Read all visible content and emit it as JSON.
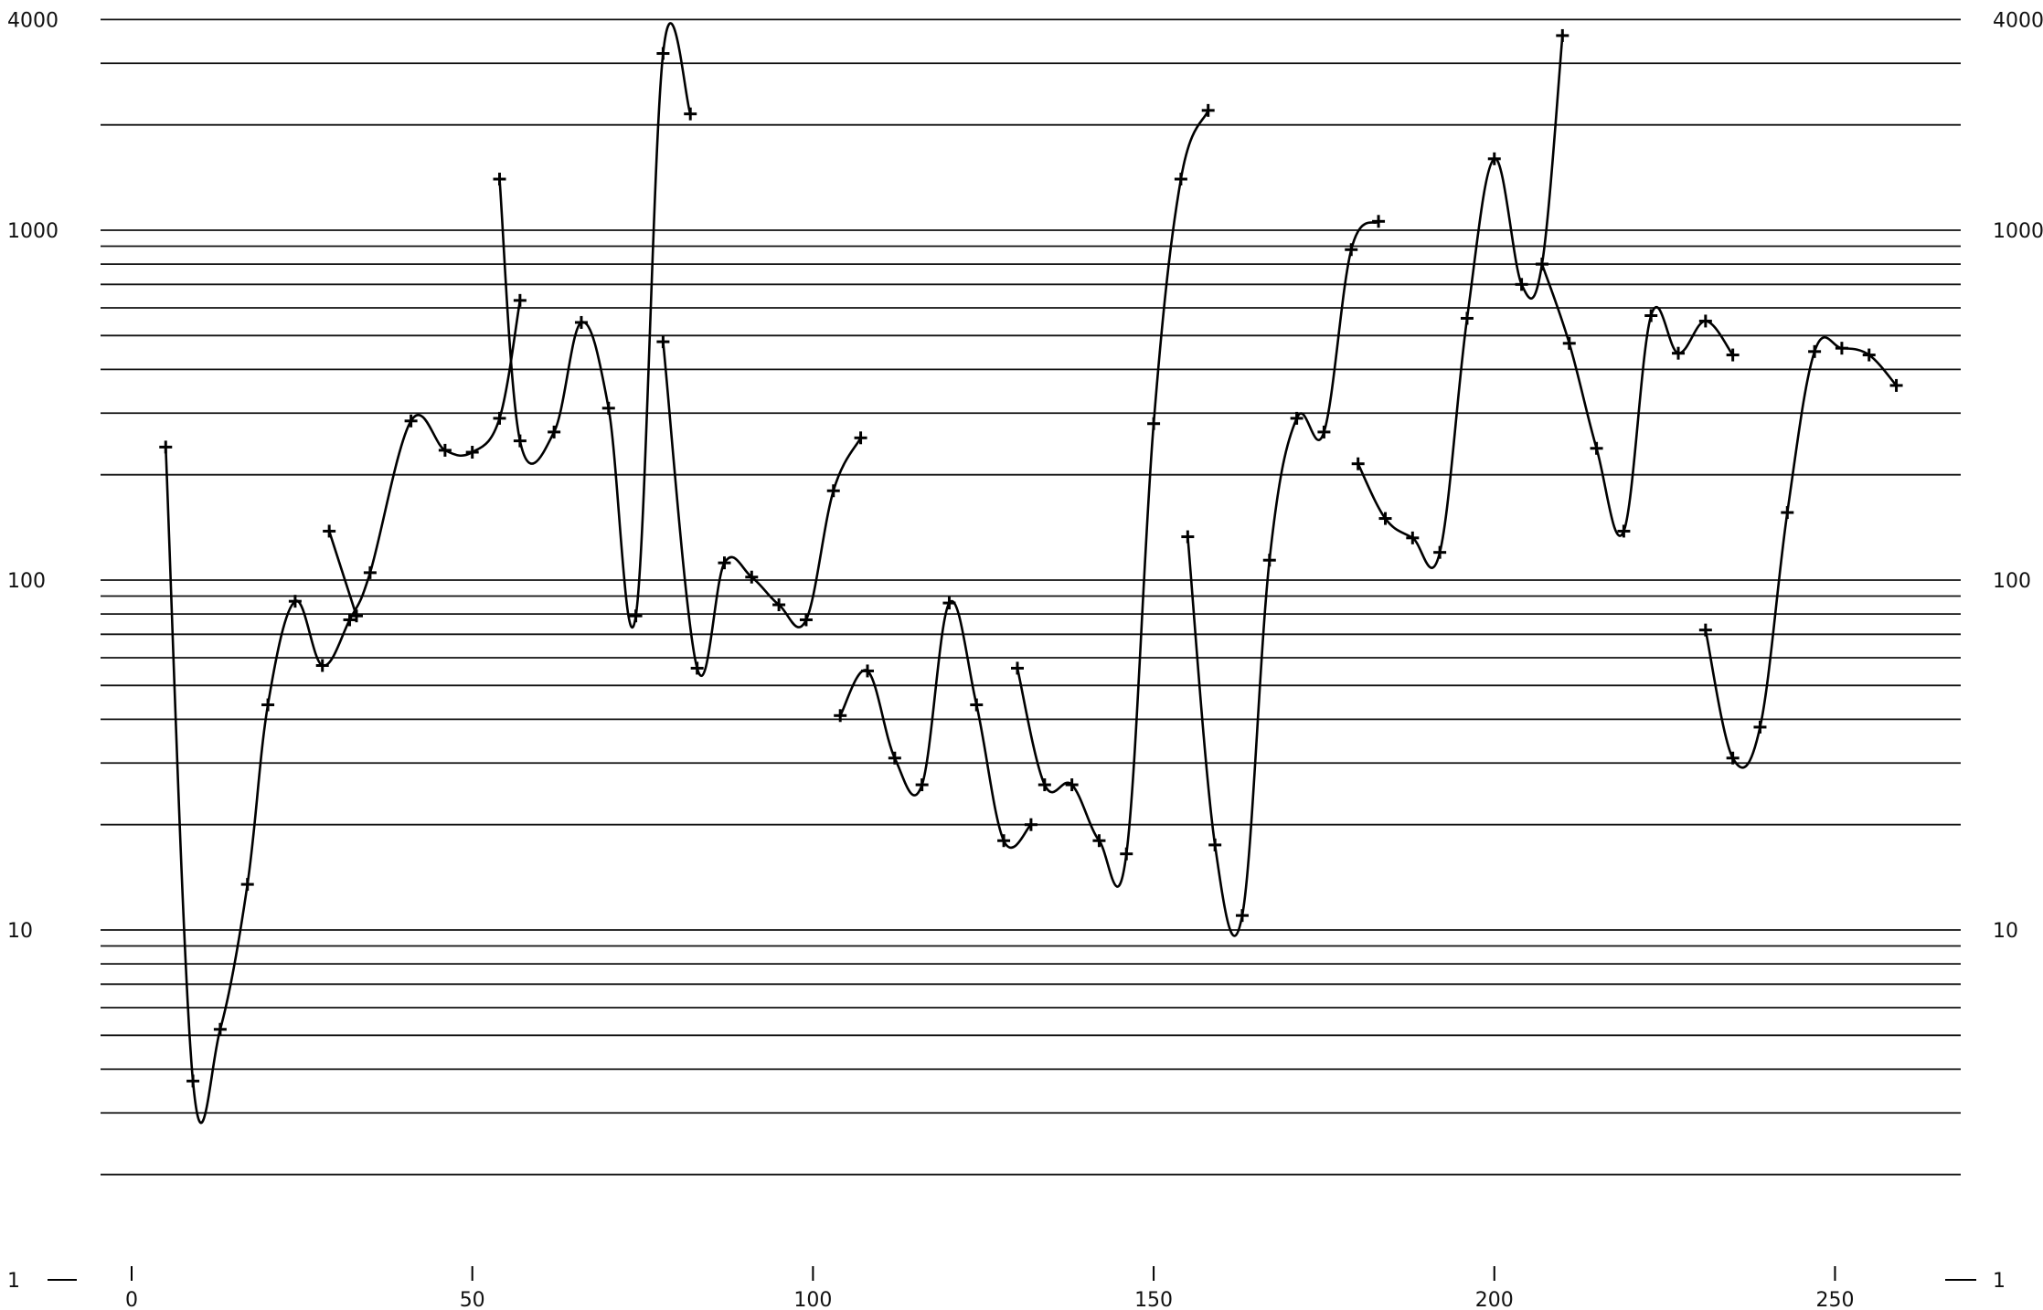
{
  "chart_data": {
    "type": "line",
    "title": "",
    "xlabel": "",
    "ylabel": "",
    "y_scale": "log",
    "ylim": [
      1,
      4000
    ],
    "xlim": [
      0,
      260
    ],
    "grid": "horizontal log gridlines at every integer multiple of each decade",
    "x_tick_labels": [
      "0",
      "50",
      "100",
      "150",
      "200",
      "250"
    ],
    "x_ticks": [
      0,
      50,
      100,
      150,
      200,
      250
    ],
    "y_tick_labels": [
      "1",
      "10",
      "100",
      "1000",
      "4000"
    ],
    "y_ticks": [
      1,
      10,
      100,
      1000,
      4000
    ],
    "y_tick_labels_right": [
      "1",
      "10",
      "100",
      "1000",
      "4000"
    ],
    "segments": [
      {
        "points": [
          [
            5,
            240
          ],
          [
            9,
            3.7
          ],
          [
            13,
            5.2
          ],
          [
            17,
            13.5
          ],
          [
            20,
            44
          ],
          [
            24,
            87
          ],
          [
            28,
            57
          ],
          [
            32,
            77
          ],
          [
            35,
            105
          ],
          [
            41,
            285
          ],
          [
            46,
            235
          ],
          [
            50,
            232
          ],
          [
            54,
            290
          ],
          [
            57,
            630
          ]
        ]
      },
      {
        "points": [
          [
            29,
            138
          ],
          [
            33,
            79
          ]
        ]
      },
      {
        "points": [
          [
            54,
            1400
          ],
          [
            57,
            250
          ],
          [
            62,
            265
          ],
          [
            66,
            545
          ],
          [
            70,
            310
          ],
          [
            74,
            79
          ],
          [
            78,
            3200
          ],
          [
            82,
            2150
          ]
        ]
      },
      {
        "points": [
          [
            78,
            480
          ],
          [
            83,
            56
          ],
          [
            87,
            112
          ],
          [
            91,
            102
          ],
          [
            95,
            85
          ],
          [
            99,
            77
          ],
          [
            103,
            180
          ],
          [
            107,
            255
          ]
        ]
      },
      {
        "points": [
          [
            104,
            41
          ],
          [
            108,
            55
          ],
          [
            112,
            31
          ],
          [
            116,
            26
          ],
          [
            120,
            86
          ],
          [
            124,
            44
          ],
          [
            128,
            18
          ],
          [
            132,
            20
          ]
        ]
      },
      {
        "points": [
          [
            130,
            56
          ],
          [
            134,
            26
          ],
          [
            138,
            26
          ],
          [
            142,
            18
          ],
          [
            146,
            16.5
          ],
          [
            150,
            280
          ],
          [
            154,
            1400
          ],
          [
            158,
            2200
          ]
        ]
      },
      {
        "points": [
          [
            155,
            133
          ],
          [
            159,
            17.5
          ],
          [
            163,
            11
          ],
          [
            167,
            114
          ],
          [
            171,
            290
          ],
          [
            175,
            265
          ],
          [
            179,
            880
          ],
          [
            183,
            1060
          ]
        ]
      },
      {
        "points": [
          [
            180,
            215
          ],
          [
            184,
            150
          ],
          [
            188,
            132
          ],
          [
            192,
            120
          ],
          [
            196,
            560
          ],
          [
            200,
            1600
          ],
          [
            204,
            700
          ],
          [
            207,
            800
          ],
          [
            210,
            3600
          ]
        ]
      },
      {
        "points": [
          [
            207,
            800
          ],
          [
            211,
            475
          ],
          [
            215,
            238
          ],
          [
            219,
            138
          ],
          [
            223,
            570
          ],
          [
            227,
            445
          ],
          [
            231,
            550
          ],
          [
            235,
            440
          ]
        ]
      },
      {
        "points": [
          [
            231,
            72
          ],
          [
            235,
            31
          ],
          [
            239,
            38
          ],
          [
            243,
            156
          ],
          [
            247,
            450
          ],
          [
            251,
            460
          ],
          [
            255,
            440
          ],
          [
            259,
            360
          ]
        ]
      }
    ]
  }
}
